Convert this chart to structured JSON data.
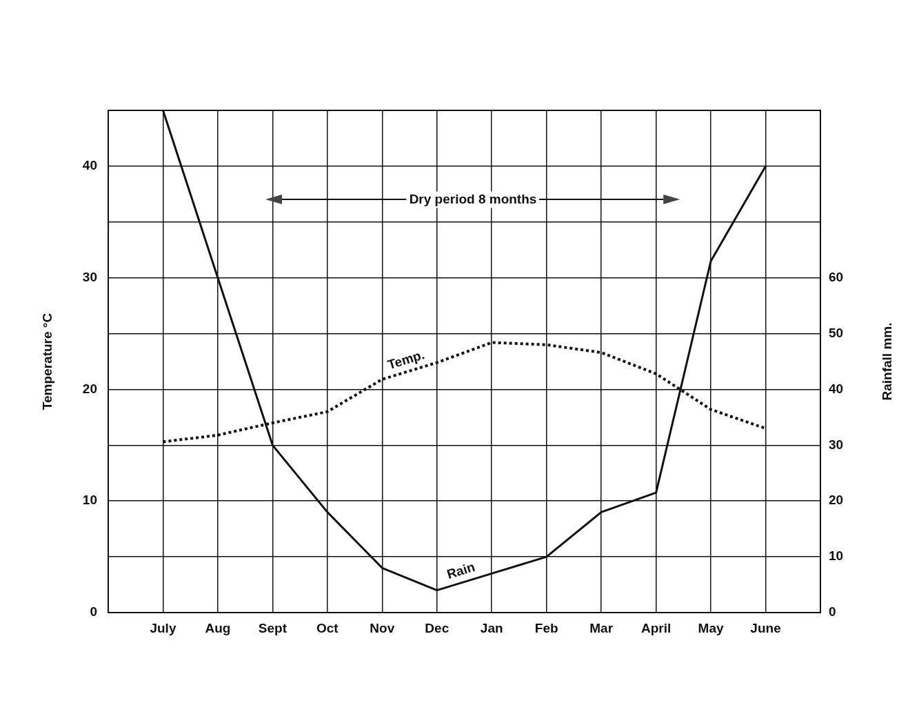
{
  "chart_data": {
    "type": "line",
    "categories": [
      null,
      "July",
      "Aug",
      "Sept",
      "Oct",
      "Nov",
      "Dec",
      "Jan",
      "Feb",
      "Mar",
      "April",
      "May",
      "June",
      null
    ],
    "xlabel": null,
    "ylabel": "Temperature °C",
    "y2label": "Rainfall mm.",
    "ylim": [
      0,
      45
    ],
    "yticks": [
      0,
      {
        "value": 5,
        "label": null
      },
      10,
      {
        "value": 15,
        "label": null
      },
      20,
      {
        "value": 25,
        "label": null
      },
      30,
      {
        "value": 35,
        "label": null
      },
      40
    ],
    "y2lim": [
      0,
      90
    ],
    "y2ticks": [
      0,
      10,
      20,
      30,
      40,
      50,
      60
    ],
    "series": [
      {
        "name": "Temp.",
        "color": "#111111",
        "line_style": "dotted",
        "values": [
          null,
          15.3,
          15.9,
          17.0,
          18.0,
          20.9,
          22.4,
          24.2,
          24.0,
          23.3,
          21.4,
          18.2,
          16.5,
          null
        ]
      },
      {
        "name": "Rain",
        "color": "#111111",
        "line_style": "solid",
        "axis": "y2",
        "values": [
          null,
          90,
          60,
          30,
          18,
          8,
          4,
          7,
          10,
          18,
          21.5,
          63,
          80,
          null
        ]
      }
    ],
    "annotations": [
      "Dry period 8 months"
    ],
    "grid": true,
    "legend": false,
    "marker": "none"
  }
}
